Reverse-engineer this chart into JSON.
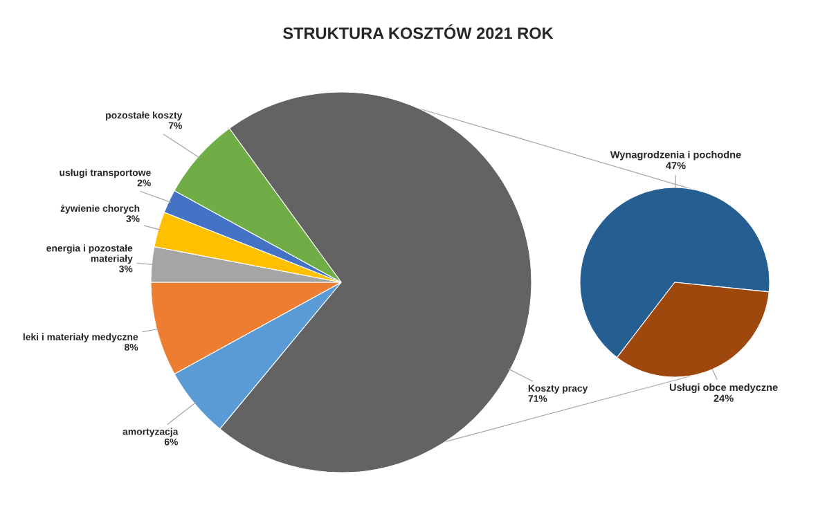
{
  "chart_data": [
    {
      "type": "pie",
      "title": "STRUKTURA KOSZTÓW 2021 ROK",
      "categories": [
        "Koszty pracy",
        "amortyzacja",
        "leki i materiały medyczne",
        "energia i pozostałe materiały",
        "żywienie chorych",
        "usługi transportowe",
        "pozostałe koszty"
      ],
      "values": [
        71,
        6,
        8,
        3,
        3,
        2,
        7
      ],
      "value_labels": [
        "71%",
        "6%",
        "8%",
        "3%",
        "3%",
        "2%",
        "7%"
      ],
      "colors": [
        "#636363",
        "#5b9bd5",
        "#ed7d31",
        "#a5a5a5",
        "#ffc000",
        "#4472c4",
        "#70ad47"
      ]
    },
    {
      "type": "pie",
      "categories": [
        "Wynagrodzenia i pochodne",
        "Usługi obce medyczne"
      ],
      "values": [
        47,
        24
      ],
      "value_labels": [
        "47%",
        "24%"
      ],
      "colors": [
        "#255e91",
        "#9e480e"
      ]
    }
  ]
}
